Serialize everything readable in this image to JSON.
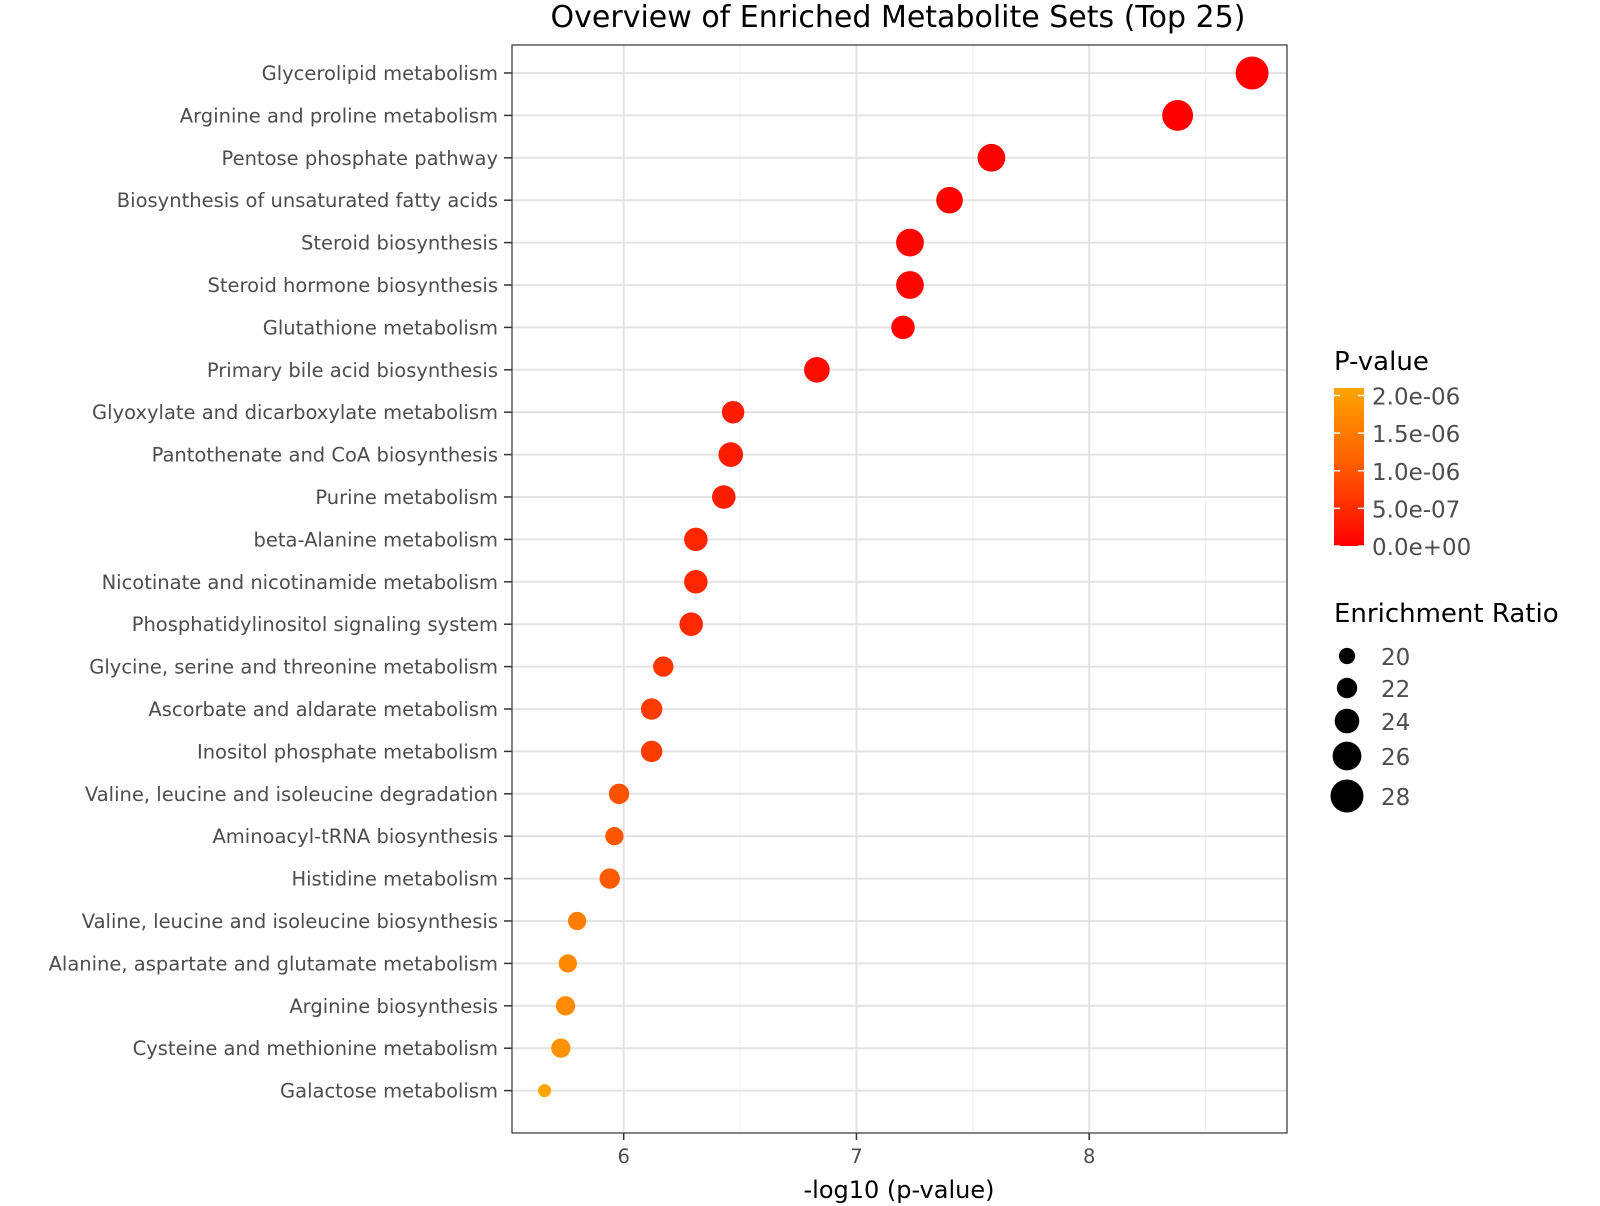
{
  "chart_data": {
    "type": "scatter",
    "title": "Overview of Enriched Metabolite Sets (Top 25)",
    "xlabel": "-log10 (p-value)",
    "ylabel": "",
    "xlim": [
      5.52,
      8.85
    ],
    "xticks": [
      6,
      7,
      8
    ],
    "xtick_labels": [
      "6",
      "7",
      "8"
    ],
    "grid": true,
    "categories": [
      "Glycerolipid metabolism",
      "Arginine and proline metabolism",
      "Pentose phosphate pathway",
      "Biosynthesis of unsaturated fatty acids",
      "Steroid biosynthesis",
      "Steroid hormone biosynthesis",
      "Glutathione metabolism",
      "Primary bile acid biosynthesis",
      "Glyoxylate and dicarboxylate metabolism",
      "Pantothenate and CoA biosynthesis",
      "Purine metabolism",
      "beta-Alanine metabolism",
      "Nicotinate and nicotinamide metabolism",
      "Phosphatidylinositol signaling system",
      "Glycine, serine and threonine metabolism",
      "Ascorbate and aldarate metabolism",
      "Inositol phosphate metabolism",
      "Valine, leucine and isoleucine degradation",
      "Aminoacyl-tRNA biosynthesis",
      "Histidine metabolism",
      "Valine, leucine and isoleucine biosynthesis",
      "Alanine, aspartate and glutamate metabolism",
      "Arginine biosynthesis",
      "Cysteine and methionine metabolism",
      "Galactose metabolism"
    ],
    "neg_log10_p": [
      8.7,
      8.38,
      7.58,
      7.4,
      7.23,
      7.23,
      7.2,
      6.83,
      6.47,
      6.46,
      6.43,
      6.31,
      6.31,
      6.29,
      6.17,
      6.12,
      6.12,
      5.98,
      5.96,
      5.94,
      5.8,
      5.76,
      5.75,
      5.73,
      5.66
    ],
    "enrichment_ratio": [
      28,
      27,
      25.5,
      25,
      25.5,
      25.5,
      23.5,
      24.5,
      23,
      24,
      23.5,
      23.5,
      23.5,
      23.5,
      22,
      22.5,
      22.5,
      22,
      21,
      22,
      21,
      21,
      21.5,
      21.5,
      18.5
    ],
    "legend": {
      "color_title": "P-value",
      "color_labels": [
        "2.0e-06",
        "1.5e-06",
        "1.0e-06",
        "5.0e-07",
        "0.0e+00"
      ],
      "color_values": [
        2e-06,
        1.5e-06,
        1e-06,
        5e-07,
        0.0
      ],
      "color_max": 2.1e-06,
      "color_low": "#ff0000",
      "color_high": "#ffa500",
      "size_title": "Enrichment Ratio",
      "size_values": [
        20,
        22,
        24,
        26,
        28
      ],
      "size_labels": [
        "20",
        "22",
        "24",
        "26",
        "28"
      ],
      "placement": "right"
    }
  }
}
